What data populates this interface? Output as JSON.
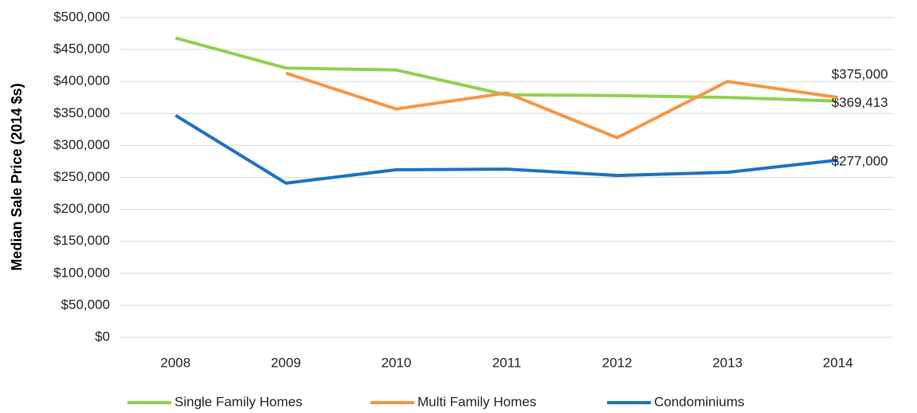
{
  "chart_data": {
    "type": "line",
    "y_label": "Median Sale Price (2014 $s)",
    "categories": [
      "2008",
      "2009",
      "2010",
      "2011",
      "2012",
      "2013",
      "2014"
    ],
    "series": [
      {
        "name": "Single Family Homes",
        "color": "#92d050",
        "values": [
          468000,
          421000,
          418000,
          379000,
          378000,
          375000,
          369413
        ],
        "value_labels": [
          null,
          null,
          null,
          null,
          null,
          null,
          "$369,413"
        ]
      },
      {
        "name": "Multi Family Homes",
        "color": "#f79646",
        "values": [
          null,
          413000,
          357000,
          382000,
          312000,
          400000,
          375000
        ],
        "value_labels": [
          null,
          null,
          null,
          null,
          null,
          null,
          "$375,000"
        ]
      },
      {
        "name": "Condominiums",
        "color": "#1f72c0",
        "values": [
          347000,
          241000,
          262000,
          263000,
          253000,
          258000,
          277000
        ],
        "value_labels": [
          null,
          null,
          null,
          null,
          null,
          null,
          "$277,000"
        ]
      }
    ],
    "ylim": [
      0,
      500000
    ],
    "yticks": [
      {
        "value": 0,
        "label": "$0"
      },
      {
        "value": 50000,
        "label": "$50,000"
      },
      {
        "value": 100000,
        "label": "$100,000"
      },
      {
        "value": 150000,
        "label": "$150,000"
      },
      {
        "value": 200000,
        "label": "$200,000"
      },
      {
        "value": 250000,
        "label": "$250,000"
      },
      {
        "value": 300000,
        "label": "$300,000"
      },
      {
        "value": 350000,
        "label": "$350,000"
      },
      {
        "value": 400000,
        "label": "$400,000"
      },
      {
        "value": 450000,
        "label": "$450,000"
      },
      {
        "value": 500000,
        "label": "$500,000"
      }
    ],
    "grid": true
  }
}
